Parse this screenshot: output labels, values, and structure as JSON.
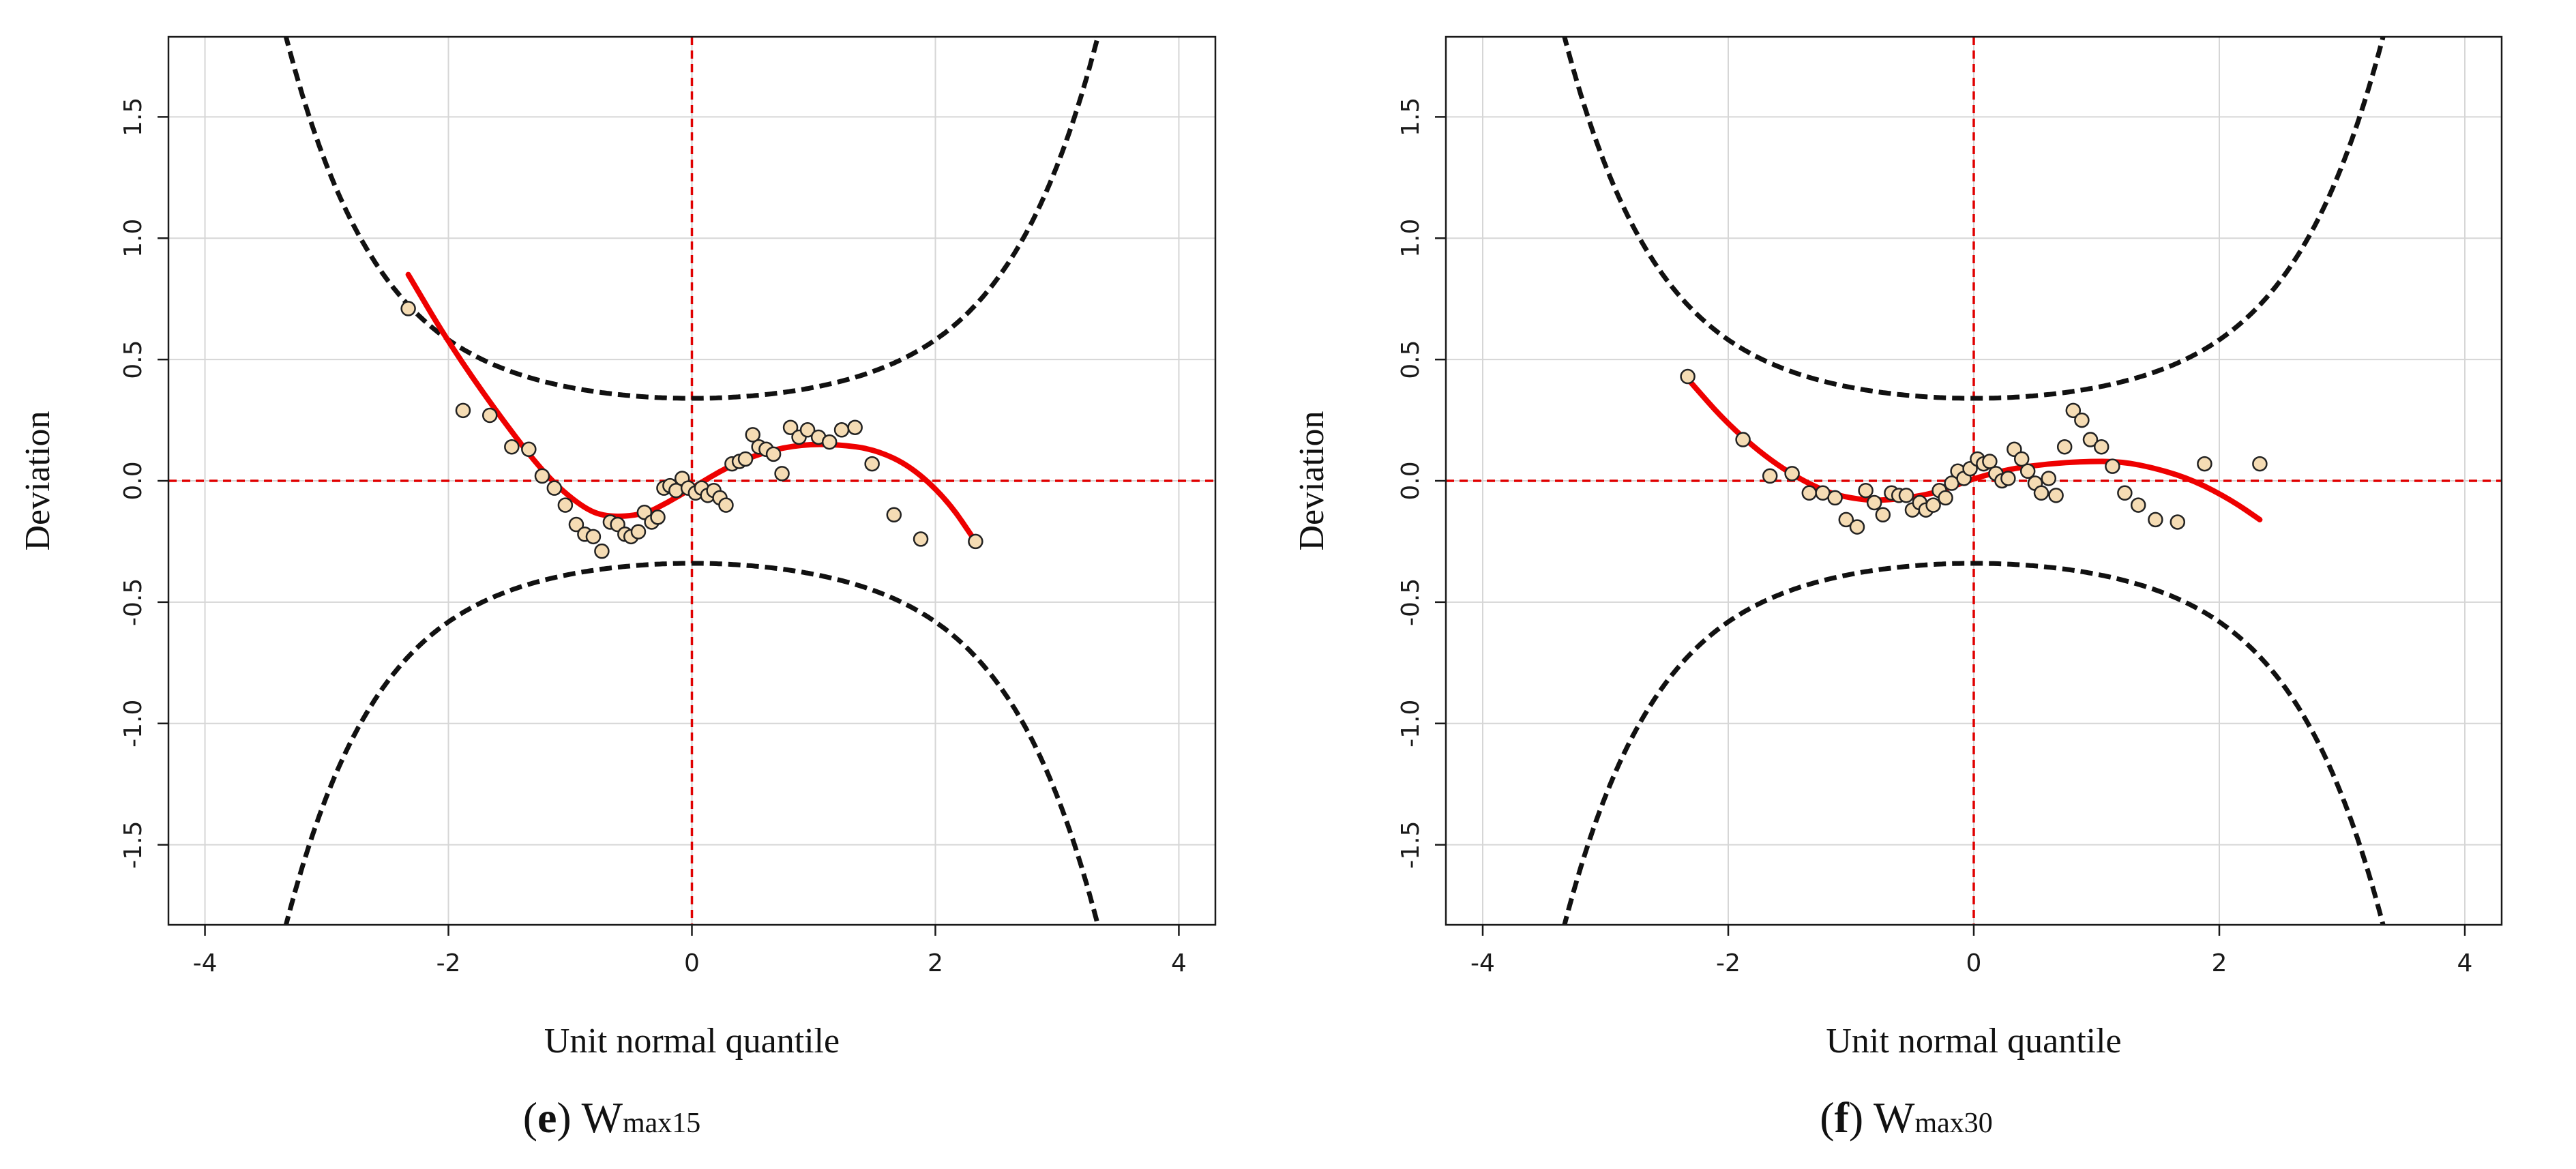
{
  "chart_data": [
    {
      "type": "scatter",
      "panel_label": "e",
      "caption_main": "W",
      "caption_sub": "max15",
      "xlabel": "Unit normal quantile",
      "ylabel": "Deviation",
      "xlim": [
        -4.3,
        4.3
      ],
      "ylim": [
        -1.83,
        1.83
      ],
      "xticks": [
        -4,
        -2,
        0,
        2,
        4
      ],
      "xtick_labels": [
        "-4",
        "-2",
        "0",
        "2",
        "4"
      ],
      "yticks": [
        -1.5,
        -1.0,
        -0.5,
        0.0,
        0.5,
        1.0,
        1.5
      ],
      "ytick_labels": [
        "-1.5",
        "-1.0",
        "-0.5",
        "0.0",
        "0.5",
        "1.0",
        "1.5"
      ],
      "grid": true,
      "reference_lines": {
        "x": 0,
        "y": 0,
        "color": "#e00000",
        "style": "dashed"
      },
      "confidence_band": {
        "center": 0.34,
        "width": 2.94,
        "color": "#111111",
        "style": "dashed"
      },
      "points": {
        "x": [
          -2.33,
          -1.88,
          -1.66,
          -1.48,
          -1.34,
          -1.23,
          -1.13,
          -1.04,
          -0.95,
          -0.88,
          -0.81,
          -0.74,
          -0.67,
          -0.61,
          -0.55,
          -0.5,
          -0.44,
          -0.39,
          -0.33,
          -0.28,
          -0.23,
          -0.18,
          -0.13,
          -0.08,
          -0.03,
          0.03,
          0.08,
          0.13,
          0.18,
          0.23,
          0.28,
          0.33,
          0.39,
          0.44,
          0.5,
          0.55,
          0.61,
          0.67,
          0.74,
          0.81,
          0.88,
          0.95,
          1.04,
          1.13,
          1.23,
          1.34,
          1.48,
          1.66,
          1.88,
          2.33
        ],
        "y": [
          0.71,
          0.29,
          0.27,
          0.14,
          0.13,
          0.02,
          -0.03,
          -0.1,
          -0.18,
          -0.22,
          -0.23,
          -0.29,
          -0.17,
          -0.18,
          -0.22,
          -0.23,
          -0.21,
          -0.13,
          -0.17,
          -0.15,
          -0.03,
          -0.02,
          -0.04,
          0.01,
          -0.03,
          -0.05,
          -0.03,
          -0.06,
          -0.04,
          -0.07,
          -0.1,
          0.07,
          0.08,
          0.09,
          0.19,
          0.14,
          0.13,
          0.11,
          0.03,
          0.22,
          0.18,
          0.21,
          0.18,
          0.16,
          0.21,
          0.22,
          0.07,
          -0.14,
          -0.24,
          -0.25
        ],
        "fill": "#f5dcb4"
      },
      "fit_line": {
        "x": [
          -2.33,
          -2.0,
          -1.6,
          -1.2,
          -0.9,
          -0.7,
          -0.4,
          -0.2,
          0.0,
          0.3,
          0.6,
          0.9,
          1.2,
          1.5,
          1.8,
          2.1,
          2.33
        ],
        "y": [
          0.85,
          0.57,
          0.28,
          0.02,
          -0.11,
          -0.15,
          -0.14,
          -0.09,
          -0.03,
          0.06,
          0.12,
          0.15,
          0.15,
          0.13,
          0.06,
          -0.08,
          -0.25
        ],
        "color": "#ee0000"
      }
    },
    {
      "type": "scatter",
      "panel_label": "f",
      "caption_main": "W",
      "caption_sub": "max30",
      "xlabel": "Unit normal quantile",
      "ylabel": "Deviation",
      "xlim": [
        -4.3,
        4.3
      ],
      "ylim": [
        -1.83,
        1.83
      ],
      "xticks": [
        -4,
        -2,
        0,
        2,
        4
      ],
      "xtick_labels": [
        "-4",
        "-2",
        "0",
        "2",
        "4"
      ],
      "yticks": [
        -1.5,
        -1.0,
        -0.5,
        0.0,
        0.5,
        1.0,
        1.5
      ],
      "ytick_labels": [
        "-1.5",
        "-1.0",
        "-0.5",
        "0.0",
        "0.5",
        "1.0",
        "1.5"
      ],
      "grid": true,
      "reference_lines": {
        "x": 0,
        "y": 0,
        "color": "#e00000",
        "style": "dashed"
      },
      "confidence_band": {
        "center": 0.34,
        "width": 2.94,
        "color": "#111111",
        "style": "dashed"
      },
      "points": {
        "x": [
          -2.33,
          -1.88,
          -1.66,
          -1.48,
          -1.34,
          -1.23,
          -1.13,
          -1.04,
          -0.95,
          -0.88,
          -0.81,
          -0.74,
          -0.67,
          -0.61,
          -0.55,
          -0.5,
          -0.44,
          -0.39,
          -0.33,
          -0.28,
          -0.23,
          -0.18,
          -0.13,
          -0.08,
          -0.03,
          0.03,
          0.08,
          0.13,
          0.18,
          0.23,
          0.28,
          0.33,
          0.39,
          0.44,
          0.5,
          0.55,
          0.61,
          0.67,
          0.74,
          0.81,
          0.88,
          0.95,
          1.04,
          1.13,
          1.23,
          1.34,
          1.48,
          1.66,
          1.88,
          2.33
        ],
        "y": [
          0.43,
          0.17,
          0.02,
          0.03,
          -0.05,
          -0.05,
          -0.07,
          -0.16,
          -0.19,
          -0.04,
          -0.09,
          -0.14,
          -0.05,
          -0.06,
          -0.06,
          -0.12,
          -0.09,
          -0.12,
          -0.1,
          -0.04,
          -0.07,
          -0.01,
          0.04,
          0.01,
          0.05,
          0.09,
          0.07,
          0.08,
          0.03,
          0.0,
          0.01,
          0.13,
          0.09,
          0.04,
          -0.01,
          -0.05,
          0.01,
          -0.06,
          0.14,
          0.29,
          0.25,
          0.17,
          0.14,
          0.06,
          -0.05,
          -0.1,
          -0.16,
          -0.17,
          0.07,
          0.07
        ],
        "fill": "#f5dcb4"
      },
      "fit_line": {
        "x": [
          -2.33,
          -2.0,
          -1.6,
          -1.2,
          -0.9,
          -0.7,
          -0.4,
          -0.2,
          0.0,
          0.3,
          0.6,
          0.9,
          1.2,
          1.5,
          1.8,
          2.1,
          2.33
        ],
        "y": [
          0.42,
          0.23,
          0.06,
          -0.05,
          -0.08,
          -0.08,
          -0.06,
          -0.03,
          0.01,
          0.05,
          0.07,
          0.08,
          0.08,
          0.05,
          0.0,
          -0.08,
          -0.16
        ],
        "color": "#ee0000"
      }
    }
  ]
}
